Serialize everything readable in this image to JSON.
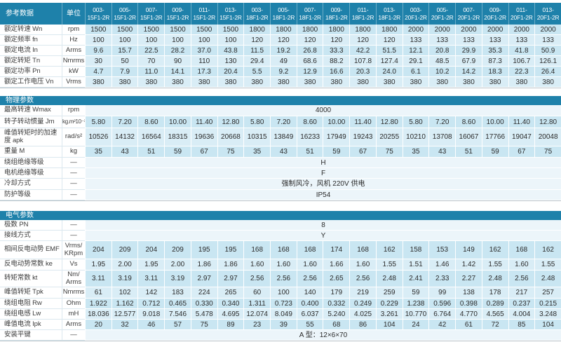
{
  "columns": [
    "003-15F1-2R",
    "005-15F1-2R",
    "007-15F1-2R",
    "009-15F1-2R",
    "011-15F1-2R",
    "013-15F1-2R",
    "003-18F1-2R",
    "005-18F1-2R",
    "007-18F1-2R",
    "009-18F1-2R",
    "011-18F1-2R",
    "013-18F1-2R",
    "003-20F1-2R",
    "005-20F1-2R",
    "007-20F1-2R",
    "009-20F1-2R",
    "011-20F1-2R",
    "013-20F1-2R"
  ],
  "reference": {
    "title": "参考数据",
    "unit_header": "单位",
    "rows": [
      {
        "label": "额定转速 Wn",
        "unit": "rpm",
        "values": [
          "1500",
          "1500",
          "1500",
          "1500",
          "1500",
          "1500",
          "1800",
          "1800",
          "1800",
          "1800",
          "1800",
          "1800",
          "2000",
          "2000",
          "2000",
          "2000",
          "2000",
          "2000"
        ]
      },
      {
        "label": "额定频率 fn",
        "unit": "Hz",
        "values": [
          "100",
          "100",
          "100",
          "100",
          "100",
          "100",
          "120",
          "120",
          "120",
          "120",
          "120",
          "120",
          "133",
          "133",
          "133",
          "133",
          "133",
          "133"
        ]
      },
      {
        "label": "额定电流 In",
        "unit": "Arms",
        "values": [
          "9.6",
          "15.7",
          "22.5",
          "28.2",
          "37.0",
          "43.8",
          "11.5",
          "19.2",
          "26.8",
          "33.3",
          "42.2",
          "51.5",
          "12.1",
          "20.8",
          "29.9",
          "35.3",
          "41.8",
          "50.9"
        ]
      },
      {
        "label": "额定转矩 Tn",
        "unit": "Nmrms",
        "values": [
          "30",
          "50",
          "70",
          "90",
          "110",
          "130",
          "29.4",
          "49",
          "68.6",
          "88.2",
          "107.8",
          "127.4",
          "29.1",
          "48.5",
          "67.9",
          "87.3",
          "106.7",
          "126.1"
        ]
      },
      {
        "label": "额定功率 Pn",
        "unit": "kW",
        "values": [
          "4.7",
          "7.9",
          "11.0",
          "14.1",
          "17.3",
          "20.4",
          "5.5",
          "9.2",
          "12.9",
          "16.6",
          "20.3",
          "24.0",
          "6.1",
          "10.2",
          "14.2",
          "18.3",
          "22.3",
          "26.4"
        ]
      },
      {
        "label": "额定工作电压 Vn",
        "unit": "Vrms",
        "values": [
          "380",
          "380",
          "380",
          "380",
          "380",
          "380",
          "380",
          "380",
          "380",
          "380",
          "380",
          "380",
          "380",
          "380",
          "380",
          "380",
          "380",
          "380"
        ]
      }
    ]
  },
  "physical": {
    "title": "物理参数",
    "rows": [
      {
        "label": "最高转速 Wmax",
        "unit": "rpm",
        "span": "4000"
      },
      {
        "label": "转子转动惯量 Jm",
        "unit": "kg.m²10⁻³",
        "values": [
          "5.80",
          "7.20",
          "8.60",
          "10.00",
          "11.40",
          "12.80",
          "5.80",
          "7.20",
          "8.60",
          "10.00",
          "11.40",
          "12.80",
          "5.80",
          "7.20",
          "8.60",
          "10.00",
          "11.40",
          "12.80"
        ]
      },
      {
        "label": "峰值转矩时的加速度 apk",
        "unit": "rad/s²",
        "values": [
          "10526",
          "14132",
          "16564",
          "18315",
          "19636",
          "20668",
          "10315",
          "13849",
          "16233",
          "17949",
          "19243",
          "20255",
          "10210",
          "13708",
          "16067",
          "17766",
          "19047",
          "20048"
        ]
      },
      {
        "label": "重量 M",
        "unit": "kg",
        "values": [
          "35",
          "43",
          "51",
          "59",
          "67",
          "75",
          "35",
          "43",
          "51",
          "59",
          "67",
          "75",
          "35",
          "43",
          "51",
          "59",
          "67",
          "75"
        ]
      },
      {
        "label": "绕组绝缘等级",
        "unit": "—",
        "span": "H"
      },
      {
        "label": "电机绝缘等级",
        "unit": "—",
        "span": "F"
      },
      {
        "label": "冷却方式",
        "unit": "—",
        "span": "强制风冷，风机 220V 供电"
      },
      {
        "label": "防护等级",
        "unit": "—",
        "span": "IP54"
      }
    ]
  },
  "electrical": {
    "title": "电气参数",
    "rows": [
      {
        "label": "极数 PN",
        "unit": "—",
        "span": "8"
      },
      {
        "label": "接线方式",
        "unit": "—",
        "span": "Y"
      },
      {
        "label": "相间反电动势 EMF",
        "unit": "Vrms/KRpm",
        "values": [
          "204",
          "209",
          "204",
          "209",
          "195",
          "195",
          "168",
          "168",
          "168",
          "174",
          "168",
          "162",
          "158",
          "153",
          "149",
          "162",
          "168",
          "162"
        ]
      },
      {
        "label": "反电动势常数 ke",
        "unit": "Vs",
        "values": [
          "1.95",
          "2.00",
          "1.95",
          "2.00",
          "1.86",
          "1.86",
          "1.60",
          "1.60",
          "1.60",
          "1.66",
          "1.60",
          "1.55",
          "1.51",
          "1.46",
          "1.42",
          "1.55",
          "1.60",
          "1.55"
        ]
      },
      {
        "label": "转矩常数 kt",
        "unit": "Nm/Arms",
        "values": [
          "3.11",
          "3.19",
          "3.11",
          "3.19",
          "2.97",
          "2.97",
          "2.56",
          "2.56",
          "2.56",
          "2.65",
          "2.56",
          "2.48",
          "2.41",
          "2.33",
          "2.27",
          "2.48",
          "2.56",
          "2.48"
        ]
      },
      {
        "label": "峰值转矩 Tpk",
        "unit": "Nmrms",
        "values": [
          "61",
          "102",
          "142",
          "183",
          "224",
          "265",
          "60",
          "100",
          "140",
          "179",
          "219",
          "259",
          "59",
          "99",
          "138",
          "178",
          "217",
          "257"
        ]
      },
      {
        "label": "绕组电阻 Rw",
        "unit": "Ohm",
        "values": [
          "1.922",
          "1.162",
          "0.712",
          "0.465",
          "0.330",
          "0.340",
          "1.311",
          "0.723",
          "0.400",
          "0.332",
          "0.249",
          "0.229",
          "1.238",
          "0.596",
          "0.398",
          "0.289",
          "0.237",
          "0.215"
        ]
      },
      {
        "label": "绕组电感 Lw",
        "unit": "mH",
        "values": [
          "18.036",
          "12.577",
          "9.018",
          "7.546",
          "5.478",
          "4.695",
          "12.074",
          "8.049",
          "6.037",
          "5.240",
          "4.025",
          "3.261",
          "10.770",
          "6.764",
          "4.770",
          "4.565",
          "4.004",
          "3.248"
        ]
      },
      {
        "label": "峰值电流 Ipk",
        "unit": "Arms",
        "values": [
          "20",
          "32",
          "46",
          "57",
          "75",
          "89",
          "23",
          "39",
          "55",
          "68",
          "86",
          "104",
          "24",
          "42",
          "61",
          "72",
          "85",
          "104"
        ]
      },
      {
        "label": "安装平键",
        "unit": "—",
        "span": "A 型：12×6×70"
      }
    ]
  }
}
